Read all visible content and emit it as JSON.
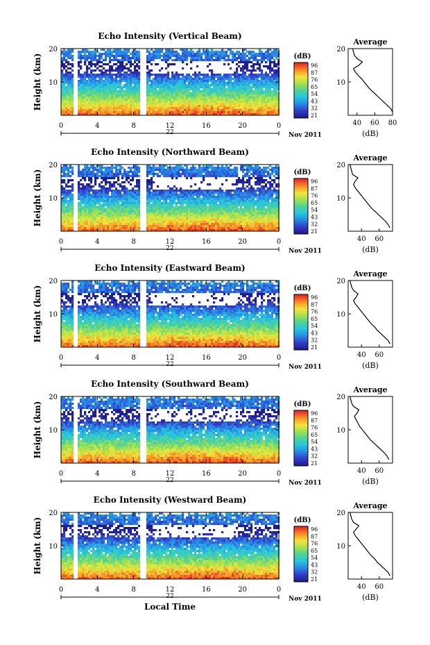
{
  "chart_data": [
    {
      "type": "heatmap",
      "title": "Echo Intensity (Vertical Beam)",
      "ylabel": "Height (km)",
      "xticks": [
        "0",
        "4",
        "8",
        "12",
        "16",
        "20",
        "0"
      ],
      "yticks": [
        "10",
        "20"
      ],
      "date_label": "22",
      "month_label": "Nov 2011",
      "colorbar_label": "(dB)",
      "colorbar_ticks": [
        "96",
        "87",
        "76",
        "65",
        "54",
        "43",
        "32",
        "21"
      ],
      "average": {
        "title": "Average",
        "xlabel": "(dB)",
        "xticks": [
          "40",
          "60",
          "80"
        ],
        "xlim": [
          30,
          80
        ],
        "yticks": [
          "10",
          "20"
        ],
        "height_km": [
          1,
          2,
          3,
          4,
          5,
          6,
          7,
          8,
          9,
          10,
          11,
          12,
          13,
          14,
          15,
          16,
          17,
          18,
          19,
          20
        ],
        "db": [
          80,
          78,
          74,
          70,
          66,
          62,
          58,
          54,
          51,
          48,
          45,
          41,
          38,
          36,
          42,
          46,
          40,
          37,
          36,
          35
        ]
      }
    },
    {
      "type": "heatmap",
      "title": "Echo Intensity (Northward Beam)",
      "ylabel": "Height (km)",
      "xticks": [
        "0",
        "4",
        "8",
        "12",
        "16",
        "20",
        "0"
      ],
      "yticks": [
        "10",
        "20"
      ],
      "date_label": "22",
      "month_label": "Nov 2011",
      "colorbar_label": "(dB)",
      "colorbar_ticks": [
        "96",
        "87",
        "76",
        "65",
        "54",
        "43",
        "32",
        "21"
      ],
      "average": {
        "title": "Average",
        "xlabel": "(dB)",
        "xticks": [
          "40",
          "60"
        ],
        "xlim": [
          25,
          75
        ],
        "yticks": [
          "10",
          "20"
        ],
        "height_km": [
          1,
          2,
          3,
          4,
          5,
          6,
          7,
          8,
          9,
          10,
          11,
          12,
          13,
          14,
          15,
          16,
          17,
          18,
          19,
          20
        ],
        "db": [
          72,
          70,
          67,
          63,
          59,
          55,
          51,
          48,
          45,
          42,
          39,
          36,
          33,
          31,
          33,
          36,
          30,
          29,
          28,
          27
        ]
      }
    },
    {
      "type": "heatmap",
      "title": "Echo Intensity (Eastward Beam)",
      "ylabel": "Height (km)",
      "xticks": [
        "0",
        "4",
        "8",
        "12",
        "16",
        "20",
        "0"
      ],
      "yticks": [
        "10",
        "20"
      ],
      "date_label": "22",
      "month_label": "Nov 2011",
      "colorbar_label": "(dB)",
      "colorbar_ticks": [
        "96",
        "87",
        "76",
        "65",
        "54",
        "43",
        "32",
        "21"
      ],
      "average": {
        "title": "Average",
        "xlabel": "(dB)",
        "xticks": [
          "40",
          "60"
        ],
        "xlim": [
          25,
          75
        ],
        "yticks": [
          "10",
          "20"
        ],
        "height_km": [
          1,
          2,
          3,
          4,
          5,
          6,
          7,
          8,
          9,
          10,
          11,
          12,
          13,
          14,
          15,
          16,
          17,
          18,
          19,
          20
        ],
        "db": [
          72,
          70,
          66,
          62,
          58,
          55,
          51,
          48,
          45,
          42,
          39,
          36,
          33,
          31,
          34,
          36,
          31,
          29,
          28,
          27
        ]
      }
    },
    {
      "type": "heatmap",
      "title": "Echo Intensity (Southward Beam)",
      "ylabel": "Height (km)",
      "xticks": [
        "0",
        "4",
        "8",
        "12",
        "16",
        "20",
        "0"
      ],
      "yticks": [
        "10",
        "20"
      ],
      "date_label": "22",
      "month_label": "Nov 2011",
      "colorbar_label": "(dB)",
      "colorbar_ticks": [
        "96",
        "87",
        "76",
        "65",
        "54",
        "43",
        "32",
        "21"
      ],
      "average": {
        "title": "Average",
        "xlabel": "(dB)",
        "xticks": [
          "40",
          "60"
        ],
        "xlim": [
          25,
          75
        ],
        "yticks": [
          "10",
          "20"
        ],
        "height_km": [
          1,
          2,
          3,
          4,
          5,
          6,
          7,
          8,
          9,
          10,
          11,
          12,
          13,
          14,
          15,
          16,
          17,
          18,
          19,
          20
        ],
        "db": [
          71,
          69,
          66,
          62,
          58,
          54,
          50,
          47,
          44,
          41,
          38,
          36,
          34,
          32,
          35,
          37,
          31,
          29,
          28,
          27
        ]
      }
    },
    {
      "type": "heatmap",
      "title": "Echo Intensity (Westward Beam)",
      "ylabel": "Height (km)",
      "xlabel": "Local Time",
      "xticks": [
        "0",
        "4",
        "8",
        "12",
        "16",
        "20",
        "0"
      ],
      "yticks": [
        "10",
        "20"
      ],
      "date_label": "22",
      "month_label": "Nov 2011",
      "colorbar_label": "(dB)",
      "colorbar_ticks": [
        "96",
        "87",
        "76",
        "65",
        "54",
        "43",
        "32",
        "21"
      ],
      "average": {
        "title": "Average",
        "xlabel": "(dB)",
        "xticks": [
          "40",
          "60"
        ],
        "xlim": [
          25,
          75
        ],
        "yticks": [
          "10",
          "20"
        ],
        "height_km": [
          1,
          2,
          3,
          4,
          5,
          6,
          7,
          8,
          9,
          10,
          11,
          12,
          13,
          14,
          15,
          16,
          17,
          18,
          19,
          20
        ],
        "db": [
          72,
          70,
          66,
          62,
          58,
          55,
          51,
          48,
          45,
          42,
          39,
          36,
          33,
          31,
          34,
          37,
          31,
          29,
          28,
          27
        ]
      }
    }
  ]
}
